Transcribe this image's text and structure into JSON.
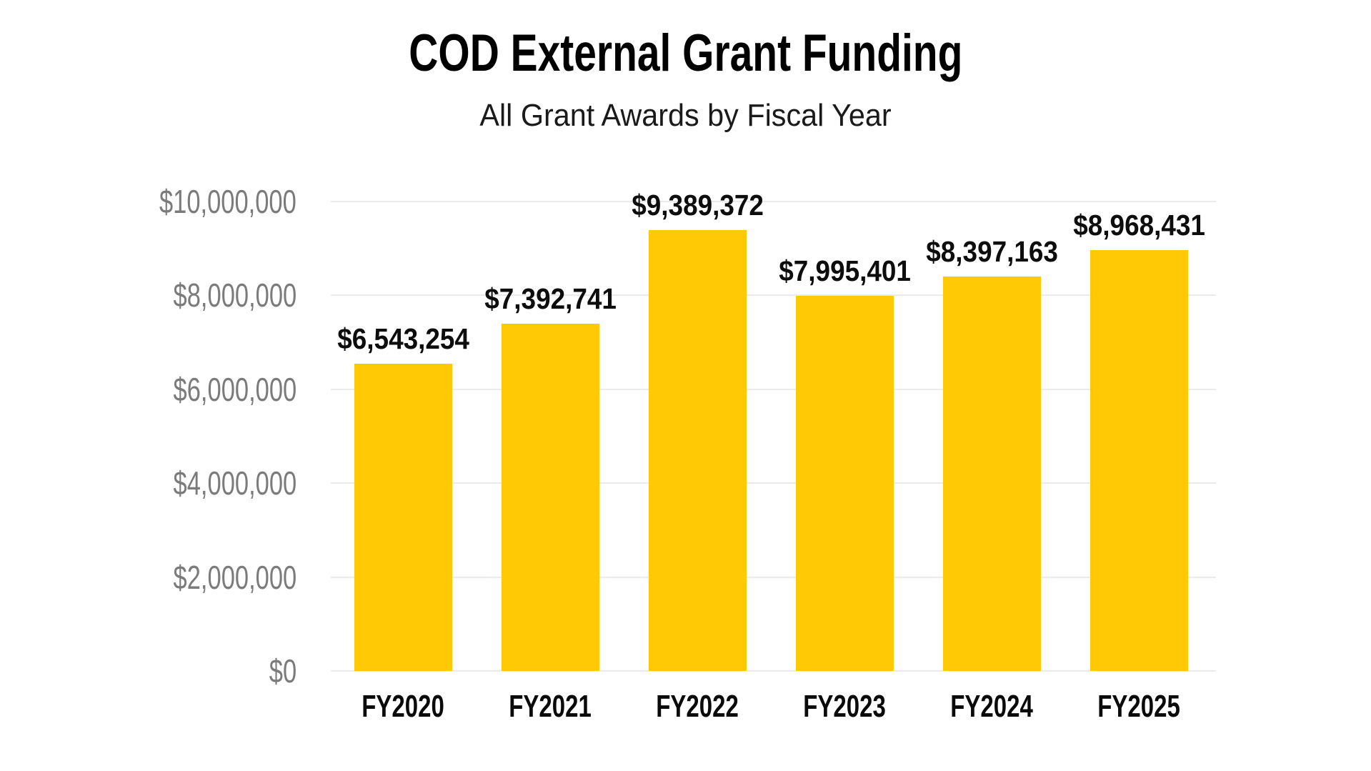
{
  "header": {
    "title": "COD External Grant Funding",
    "subtitle": "All Grant Awards by Fiscal Year"
  },
  "chart_data": {
    "type": "bar",
    "title": "COD External Grant Funding",
    "subtitle": "All Grant Awards by Fiscal Year",
    "categories": [
      "FY2020",
      "FY2021",
      "FY2022",
      "FY2023",
      "FY2024",
      "FY2025"
    ],
    "values": [
      6543254,
      7392741,
      9389372,
      7995401,
      8397163,
      8968431
    ],
    "value_labels": [
      "$6,543,254",
      "$7,392,741",
      "$9,389,372",
      "$7,995,401",
      "$8,397,163",
      "$8,968,431"
    ],
    "xlabel": "",
    "ylabel": "",
    "ylim": [
      0,
      10000000
    ],
    "y_ticks": [
      {
        "value": 0,
        "label": "$0"
      },
      {
        "value": 2000000,
        "label": "$2,000,000"
      },
      {
        "value": 4000000,
        "label": "$4,000,000"
      },
      {
        "value": 6000000,
        "label": "$6,000,000"
      },
      {
        "value": 8000000,
        "label": "$8,000,000"
      },
      {
        "value": 10000000,
        "label": "$10,000,000"
      }
    ],
    "grid": "horizontal",
    "legend": "none",
    "colors": {
      "bar": "#FFCA05",
      "grid": "#ebebeb",
      "y_tick_label": "#7b7b7b",
      "value_label": "#0d0d0d",
      "x_axis_label": "#0a0a0a",
      "title": "#000000",
      "subtitle": "#1a1a1a",
      "background": "#ffffff"
    }
  }
}
